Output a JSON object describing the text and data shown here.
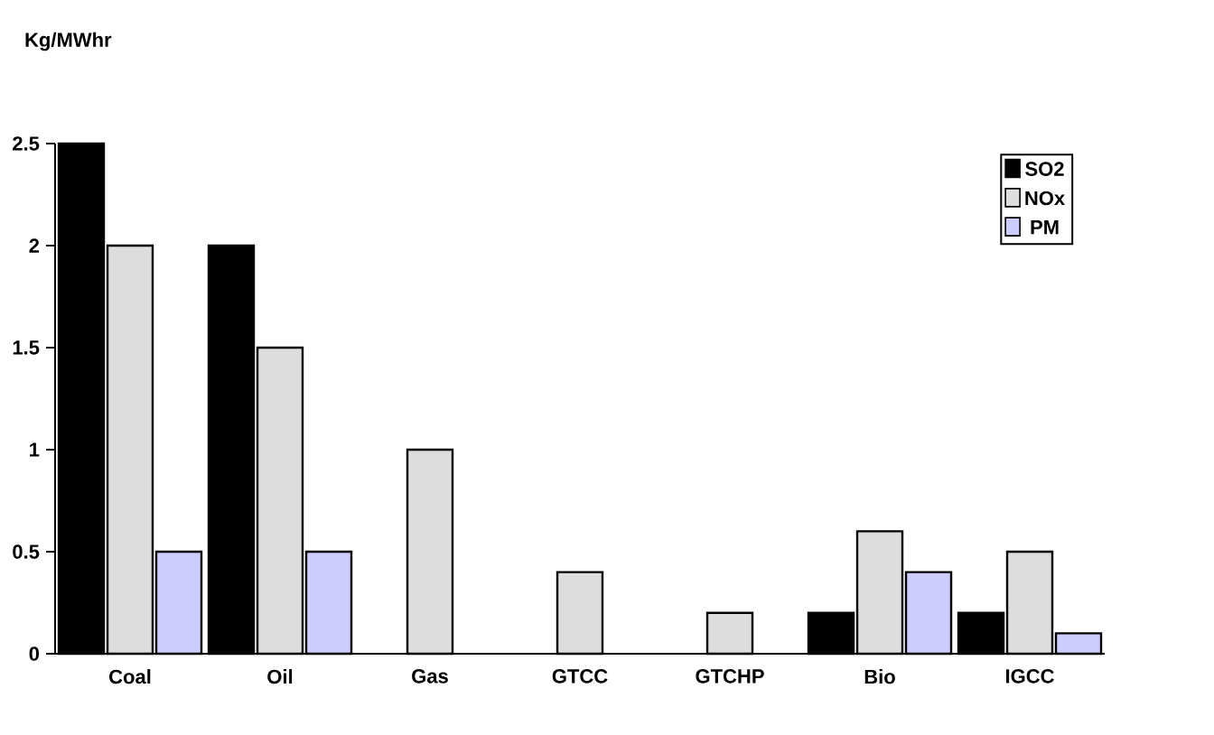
{
  "chart_data": {
    "type": "bar",
    "ylabel": "Kg/MWhr",
    "categories": [
      "Coal",
      "Oil",
      "Gas",
      "GTCC",
      "GTCHP",
      "Bio",
      "IGCC"
    ],
    "series": [
      {
        "name": "SO2",
        "color": "#000000",
        "values": [
          2.5,
          2,
          null,
          null,
          null,
          0.2,
          0.2
        ]
      },
      {
        "name": "NOx",
        "color": "#dddddd",
        "values": [
          2,
          1.5,
          1,
          0.4,
          0.2,
          0.6,
          0.5
        ]
      },
      {
        "name": "PM",
        "color": "#ccccff",
        "values": [
          0.5,
          0.5,
          null,
          null,
          null,
          0.4,
          0.1
        ]
      }
    ],
    "ylim": [
      0,
      2.5
    ],
    "yticks": [
      0,
      0.5,
      1,
      1.5,
      2,
      2.5
    ],
    "legend": "top right",
    "grid": false
  }
}
